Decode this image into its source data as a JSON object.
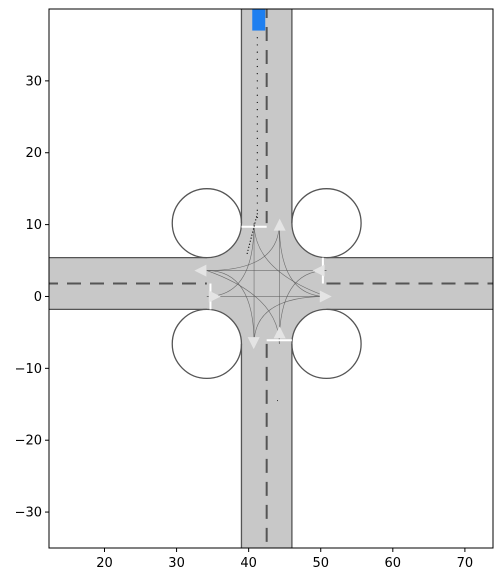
{
  "plot": {
    "x_ticks": [
      {
        "value": 20,
        "label": "20"
      },
      {
        "value": 30,
        "label": "30"
      },
      {
        "value": 40,
        "label": "40"
      },
      {
        "value": 50,
        "label": "50"
      },
      {
        "value": 60,
        "label": "60"
      },
      {
        "value": 70,
        "label": "70"
      }
    ],
    "y_ticks": [
      {
        "value": 30,
        "label": "30"
      },
      {
        "value": 20,
        "label": "20"
      },
      {
        "value": 10,
        "label": "10"
      },
      {
        "value": 0,
        "label": "0"
      },
      {
        "value": -10,
        "label": "−10"
      },
      {
        "value": -20,
        "label": "−20"
      },
      {
        "value": -30,
        "label": "−30"
      }
    ],
    "xlim": [
      12.3,
      73.9
    ],
    "ylim": [
      -35,
      40
    ]
  },
  "scene": {
    "road_color": "#c8c8c8",
    "edge_color": "#555555",
    "vertical_road": {
      "x_min": 39.0,
      "x_max": 46.0,
      "center_x": 42.5
    },
    "horizontal_road": {
      "y_min": -1.8,
      "y_max": 5.4,
      "center_y": 1.8
    },
    "vehicle": {
      "x": 41.4,
      "y": 38.5,
      "width": 1.8,
      "height": 3.0,
      "color": "#1e7ff0"
    }
  }
}
